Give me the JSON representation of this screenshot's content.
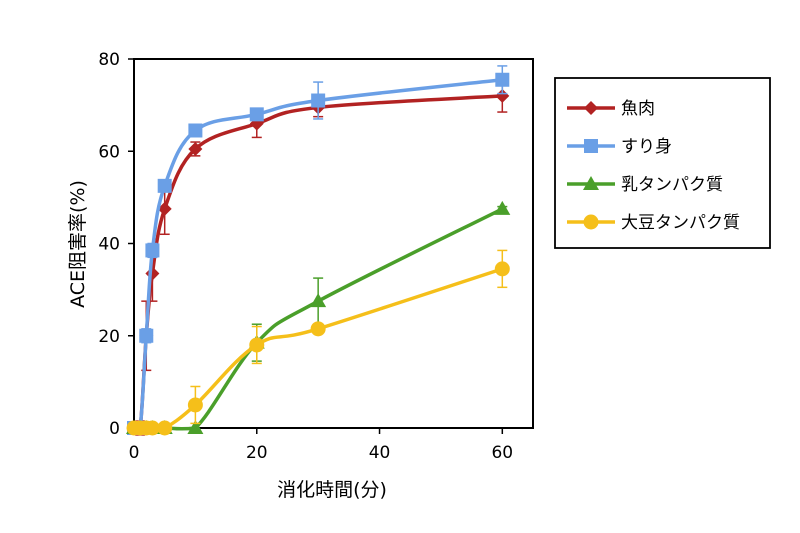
{
  "chart_data": {
    "type": "line",
    "xlabel": "消化時間(分)",
    "ylabel": "ACE阻害率(%)",
    "xlim": [
      0,
      65
    ],
    "ylim": [
      0,
      80
    ],
    "x_ticks": [
      0,
      20,
      40,
      60
    ],
    "y_ticks": [
      0,
      20,
      40,
      60,
      80
    ],
    "grid": false,
    "legend_position": "right",
    "series": [
      {
        "name": "魚肉",
        "color": "#b22222",
        "marker": "diamond",
        "x": [
          0,
          1,
          2,
          3,
          5,
          10,
          20,
          30,
          60
        ],
        "y": [
          0,
          0,
          20,
          33.5,
          47.5,
          60.5,
          66,
          69.5,
          72
        ],
        "err": [
          0,
          1.5,
          7.5,
          6,
          5.5,
          1.5,
          3,
          2,
          3.5
        ]
      },
      {
        "name": "すり身",
        "color": "#6a9fe6",
        "marker": "square",
        "x": [
          0,
          1,
          2,
          3,
          5,
          10,
          20,
          30,
          60
        ],
        "y": [
          0,
          0,
          20,
          38.5,
          52.5,
          64.5,
          68,
          71,
          75.5
        ],
        "err": [
          0,
          0.5,
          1.5,
          1.5,
          1,
          1,
          1,
          4,
          3
        ]
      },
      {
        "name": "乳タンパク質",
        "color": "#4a9f2a",
        "marker": "triangle",
        "x": [
          0,
          1,
          2,
          3,
          5,
          10,
          20,
          30,
          60
        ],
        "y": [
          0,
          0,
          0,
          0,
          0,
          0,
          18.5,
          27.5,
          47.5
        ],
        "err": [
          0,
          0,
          0,
          0,
          0,
          0,
          4,
          5,
          0.5
        ]
      },
      {
        "name": "大豆タンパク質",
        "color": "#f5bf1a",
        "marker": "circle",
        "x": [
          0,
          1,
          2,
          3,
          5,
          10,
          20,
          30,
          60
        ],
        "y": [
          0,
          0,
          0,
          0,
          0,
          5,
          18,
          21.5,
          34.5
        ],
        "err": [
          0,
          0,
          0,
          0,
          0,
          4,
          4,
          0,
          4
        ]
      }
    ]
  }
}
